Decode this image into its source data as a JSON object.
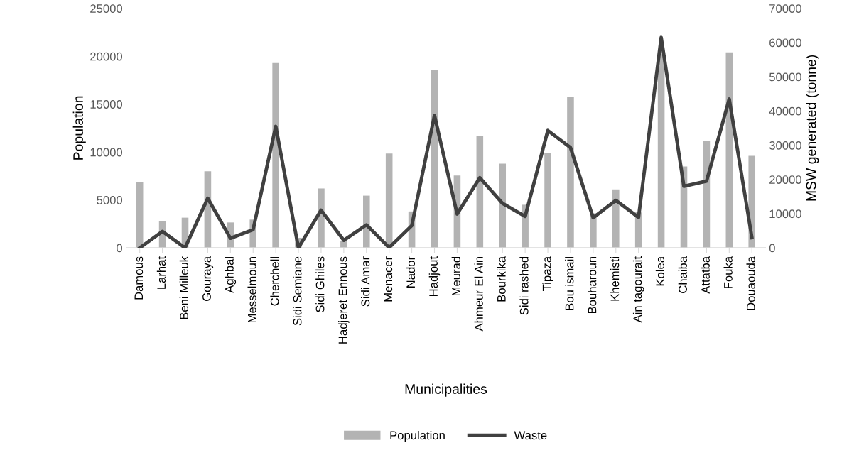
{
  "chart_data": {
    "type": "bar",
    "xlabel": "Municipalities",
    "ylabel": "Population",
    "y2label": "MSW generated (tonne)",
    "categories": [
      "Damous",
      "Larhat",
      "Beni Milleuk",
      "Gouraya",
      "Aghbal",
      "Messelmoun",
      "Cherchell",
      "Sidi Semiane",
      "Sidi Ghiles",
      "Hadjeret Ennous",
      "Sidi Amar",
      "Menacer",
      "Nador",
      "Hadjout",
      "Meurad",
      "Ahmeur El Ain",
      "Bourkika",
      "Sidi rashed",
      "Tipaza",
      "Bou ismail",
      "Bouharoun",
      "Khemisti",
      "Ain tagourait",
      "Kolea",
      "Chaiba",
      "Attatba",
      "Fouka",
      "Douaouda"
    ],
    "series": [
      {
        "name": "Population",
        "color": "#b3b3b3",
        "values": [
          6850,
          2750,
          3150,
          8000,
          2650,
          2950,
          19300,
          1050,
          6200,
          700,
          5450,
          9850,
          3800,
          18600,
          7550,
          11700,
          8800,
          4500,
          9900,
          15750,
          3600,
          6100,
          3700,
          20200,
          8500,
          11150,
          20400,
          9600
        ]
      },
      {
        "name": "Waste",
        "type": "line",
        "axis": "y2",
        "color": "#404040",
        "values": [
          0,
          4800,
          0,
          14500,
          2800,
          5300,
          35500,
          0,
          11000,
          2200,
          6700,
          100,
          6500,
          38700,
          9900,
          20500,
          13000,
          9200,
          34300,
          29300,
          8800,
          13900,
          8900,
          61500,
          18000,
          19500,
          43500,
          3000
        ]
      }
    ],
    "ylim": [
      0,
      25000
    ],
    "yticks": [
      0,
      5000,
      10000,
      15000,
      20000,
      25000
    ],
    "y2lim": [
      0,
      70000
    ],
    "y2ticks": [
      0,
      10000,
      20000,
      30000,
      40000,
      50000,
      60000,
      70000
    ],
    "grid": false,
    "legend": "bottom",
    "marker": "none",
    "line_style": "solid"
  }
}
